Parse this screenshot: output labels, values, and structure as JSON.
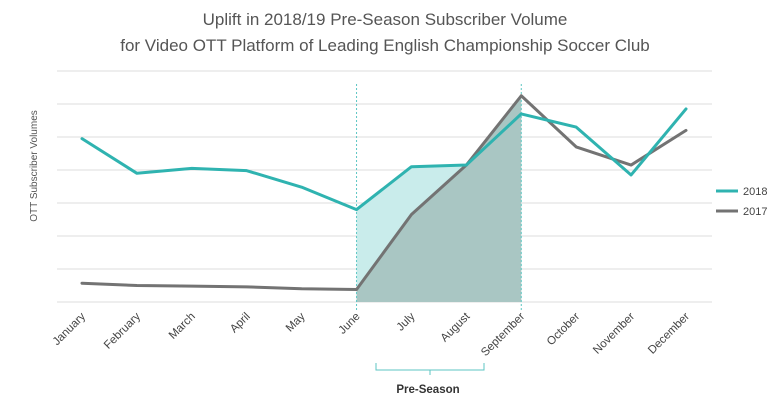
{
  "chart_data": {
    "type": "line",
    "title_lines": [
      "Uplift in 2018/19 Pre-Season Subscriber Volume",
      "for Video OTT Platform of Leading English Championship Soccer Club"
    ],
    "xlabel": "",
    "ylabel": "OTT Subscriber Volumes",
    "categories": [
      "January",
      "February",
      "March",
      "April",
      "May",
      "June",
      "July",
      "August",
      "September",
      "October",
      "November",
      "December"
    ],
    "ylim": [
      0,
      7
    ],
    "y_ticks_labeled": false,
    "grid": true,
    "series": [
      {
        "name": "2018",
        "color": "#2fb3b0",
        "values": [
          4.95,
          3.9,
          4.05,
          3.98,
          3.48,
          2.8,
          4.1,
          4.15,
          5.7,
          5.3,
          3.85,
          5.85
        ]
      },
      {
        "name": "2017",
        "color": "#737373",
        "values": [
          0.57,
          0.5,
          0.48,
          0.46,
          0.4,
          0.38,
          2.65,
          4.15,
          6.25,
          4.7,
          4.15,
          5.2
        ]
      }
    ],
    "legend_position": "right",
    "highlight": {
      "label": "Pre-Season",
      "start_category": "June",
      "end_category": "September",
      "fill_upper_color": "#c9eceb",
      "fill_lower_color": "#a9c6c3",
      "guide_color": "#5cc6c3"
    }
  }
}
